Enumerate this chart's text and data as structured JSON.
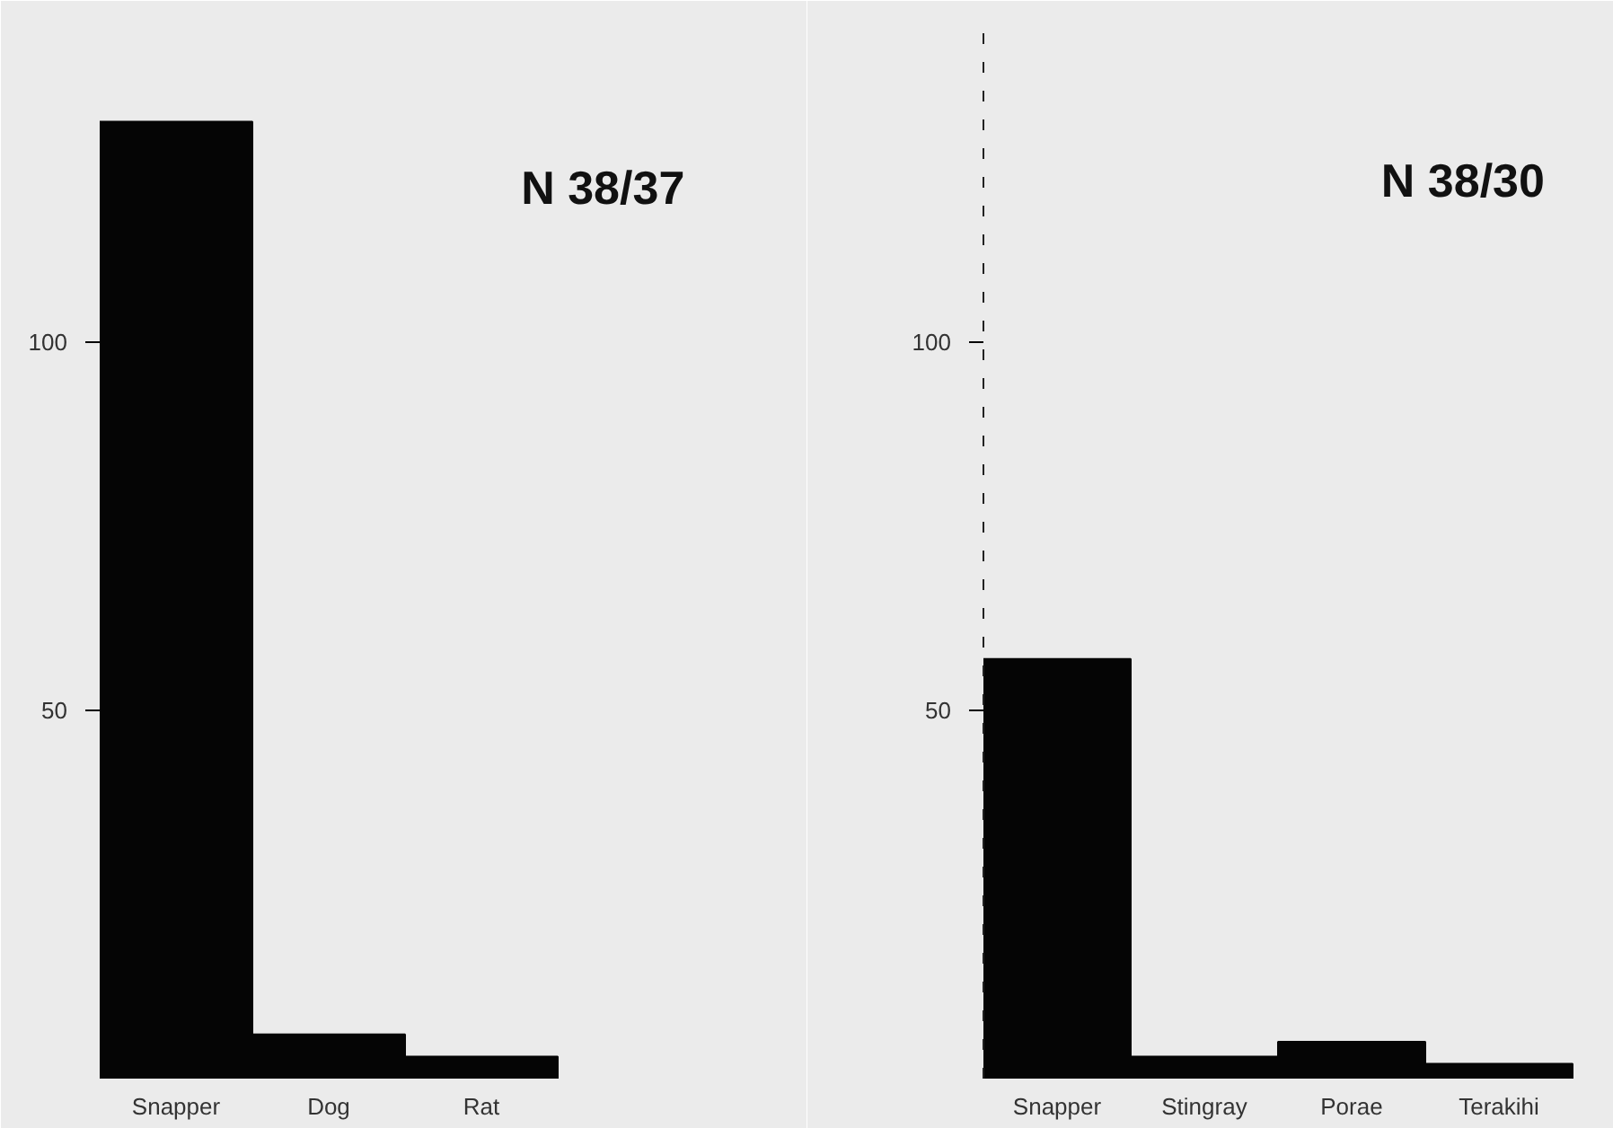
{
  "chart_data": [
    {
      "type": "bar",
      "title": "N 38/37",
      "categories": [
        "Snapper",
        "Dog",
        "Rat"
      ],
      "values": [
        130,
        6,
        3
      ],
      "color": "#050505",
      "ylim": [
        0,
        143
      ],
      "yticks": [
        50,
        100
      ],
      "grid": false
    },
    {
      "type": "bar",
      "title": "N 38/30",
      "categories": [
        "Snapper",
        "Stingray",
        "Porae",
        "Terakihi"
      ],
      "values": [
        57,
        3,
        5,
        2
      ],
      "color": "#050505",
      "ylim": [
        0,
        143
      ],
      "yticks": [
        50,
        100
      ],
      "grid": false
    }
  ]
}
